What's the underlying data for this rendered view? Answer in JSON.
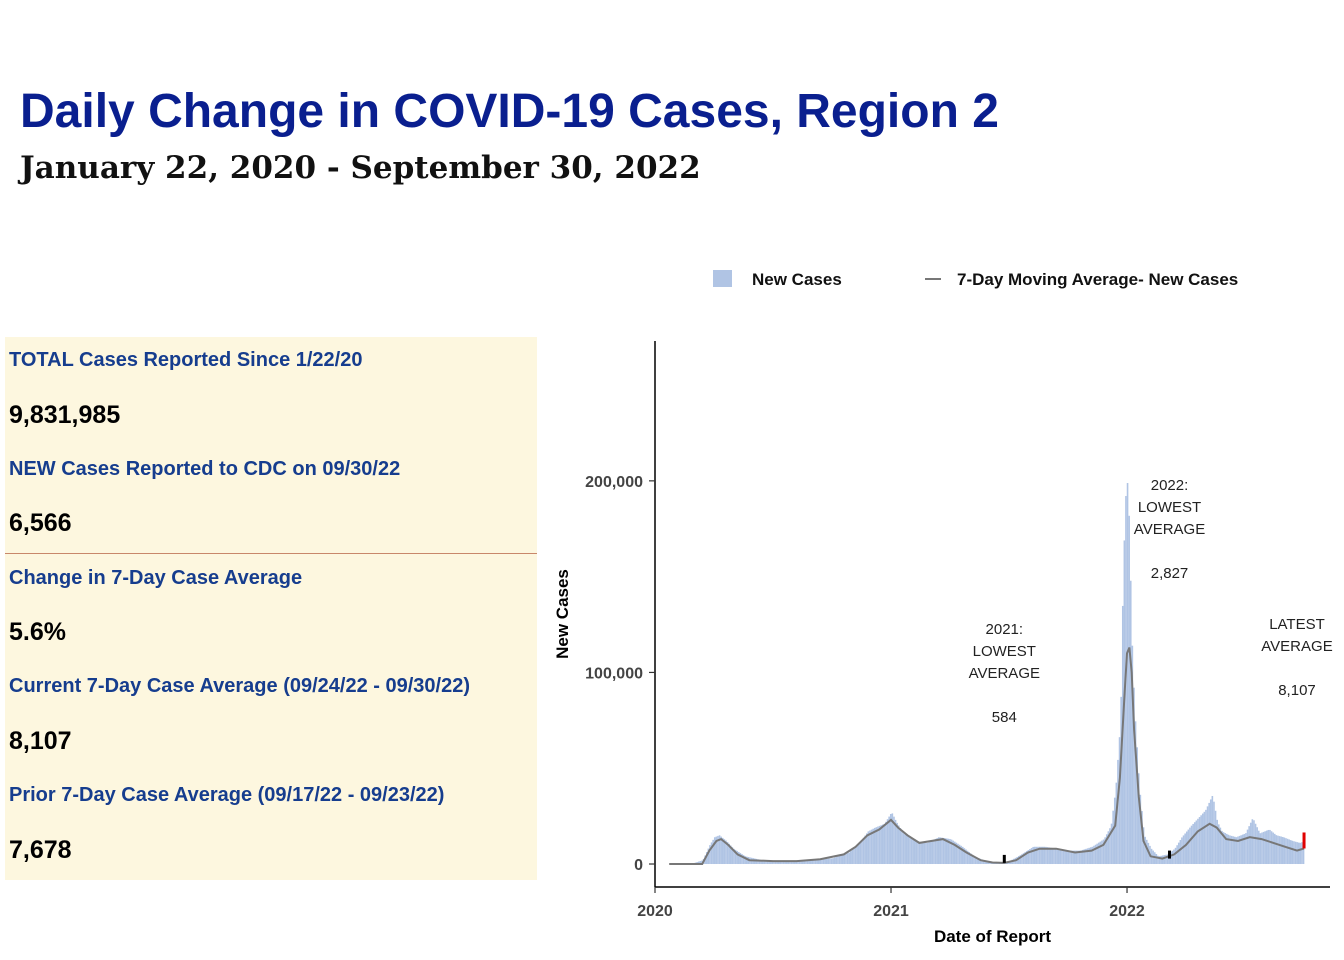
{
  "header": {
    "title": "Daily Change in COVID-19 Cases, Region 2",
    "subtitle": "January 22, 2020 - September 30, 2022"
  },
  "stats": {
    "total_label": "TOTAL Cases Reported Since 1/22/20",
    "total_value": "9,831,985",
    "new_label": "NEW Cases Reported to CDC on 09/30/22",
    "new_value": "6,566",
    "change_label": "Change in 7-Day Case Average",
    "change_value": "5.6%",
    "current_label": "Current 7-Day Case Average (09/24/22 - 09/30/22)",
    "current_value": "8,107",
    "prior_label": "Prior 7-Day Case Average (09/17/22 - 09/23/22)",
    "prior_value": "7,678",
    "panel_color": "#fdf7df",
    "label_color": "#163d8e"
  },
  "legend": {
    "bars": "New Cases",
    "line": "7-Day Moving Average- New Cases"
  },
  "chart_data": {
    "type": "bar",
    "xlabel": "Date of Report",
    "ylabel": "New Cases",
    "x_ticks": [
      "2020",
      "2021",
      "2022"
    ],
    "x_tick_years": [
      2020,
      2021,
      2022
    ],
    "y_ticks": [
      0,
      100000,
      200000
    ],
    "y_tick_labels": [
      "0",
      "100,000",
      "200,000"
    ],
    "xlim": [
      2020.0,
      2022.86
    ],
    "ylim": [
      -12000,
      273000
    ],
    "bar_color": "#b0c4e4",
    "line_color": "#777777",
    "series": [
      {
        "name": "New Cases",
        "type": "bar",
        "x": [
          2020.06,
          2020.15,
          2020.2,
          2020.23,
          2020.25,
          2020.27,
          2020.3,
          2020.33,
          2020.38,
          2020.45,
          2020.55,
          2020.65,
          2020.75,
          2020.82,
          2020.87,
          2020.9,
          2020.93,
          2020.97,
          2021.0,
          2021.02,
          2021.05,
          2021.1,
          2021.15,
          2021.2,
          2021.25,
          2021.3,
          2021.35,
          2021.4,
          2021.45,
          2021.5,
          2021.55,
          2021.6,
          2021.65,
          2021.7,
          2021.75,
          2021.8,
          2021.85,
          2021.9,
          2021.93,
          2021.95,
          2021.97,
          2021.98,
          2021.99,
          2022.0,
          2022.005,
          2022.01,
          2022.015,
          2022.02,
          2022.03,
          2022.05,
          2022.07,
          2022.1,
          2022.13,
          2022.17,
          2022.2,
          2022.23,
          2022.27,
          2022.3,
          2022.33,
          2022.36,
          2022.38,
          2022.4,
          2022.43,
          2022.46,
          2022.5,
          2022.53,
          2022.56,
          2022.6,
          2022.63,
          2022.66,
          2022.7,
          2022.73,
          2022.75
        ],
        "y": [
          0,
          0,
          2000,
          10000,
          14000,
          15000,
          12000,
          8000,
          4000,
          2000,
          1500,
          2000,
          3000,
          6000,
          12000,
          17000,
          19000,
          21000,
          27000,
          22000,
          16000,
          12000,
          11000,
          14000,
          13000,
          9000,
          4000,
          1500,
          800,
          1500,
          5000,
          9000,
          9000,
          8000,
          7000,
          7000,
          9000,
          13000,
          20000,
          40000,
          75000,
          145000,
          190000,
          200000,
          185000,
          160000,
          135000,
          110000,
          80000,
          40000,
          15000,
          8000,
          4000,
          5000,
          8000,
          14000,
          20000,
          24000,
          28000,
          36000,
          22000,
          17000,
          15000,
          14000,
          16000,
          24000,
          16000,
          18000,
          15000,
          14000,
          12000,
          11000,
          12000
        ]
      },
      {
        "name": "7-Day Moving Average- New Cases",
        "type": "line",
        "x": [
          2020.06,
          2020.2,
          2020.23,
          2020.26,
          2020.28,
          2020.31,
          2020.35,
          2020.4,
          2020.5,
          2020.6,
          2020.7,
          2020.8,
          2020.85,
          2020.9,
          2020.95,
          2021.0,
          2021.03,
          2021.07,
          2021.12,
          2021.17,
          2021.22,
          2021.27,
          2021.32,
          2021.38,
          2021.43,
          2021.48,
          2021.53,
          2021.58,
          2021.63,
          2021.7,
          2021.78,
          2021.85,
          2021.9,
          2021.95,
          2021.97,
          2021.99,
          2022.0,
          2022.01,
          2022.02,
          2022.03,
          2022.05,
          2022.07,
          2022.1,
          2022.15,
          2022.2,
          2022.25,
          2022.3,
          2022.35,
          2022.38,
          2022.42,
          2022.47,
          2022.52,
          2022.57,
          2022.62,
          2022.67,
          2022.72,
          2022.75
        ],
        "y": [
          0,
          0,
          7000,
          12000,
          13000,
          10000,
          5000,
          2000,
          1500,
          1500,
          2500,
          5000,
          9000,
          15000,
          18000,
          23000,
          19000,
          15000,
          11000,
          12000,
          13000,
          10000,
          6000,
          2000,
          800,
          584,
          2000,
          6000,
          8000,
          8000,
          6000,
          7000,
          10000,
          20000,
          45000,
          90000,
          110000,
          113000,
          100000,
          70000,
          35000,
          12000,
          4000,
          2827,
          5000,
          10000,
          17000,
          21000,
          19000,
          13000,
          12000,
          14000,
          13000,
          11000,
          9000,
          7000,
          8107
        ]
      }
    ],
    "annotations": [
      {
        "text": [
          "2021:",
          "LOWEST",
          "AVERAGE",
          "",
          "584"
        ],
        "x": 2021.48,
        "value": 584
      },
      {
        "text": [
          "2022:",
          "LOWEST",
          "AVERAGE",
          "",
          "2,827"
        ],
        "x": 2022.18,
        "value": 2827
      },
      {
        "text": [
          "LATEST",
          "AVERAGE",
          "",
          "8,107"
        ],
        "x": 2022.75,
        "value": 8107
      }
    ],
    "marker_colors": {
      "lowest": "#000000",
      "latest": "#e00000"
    }
  }
}
